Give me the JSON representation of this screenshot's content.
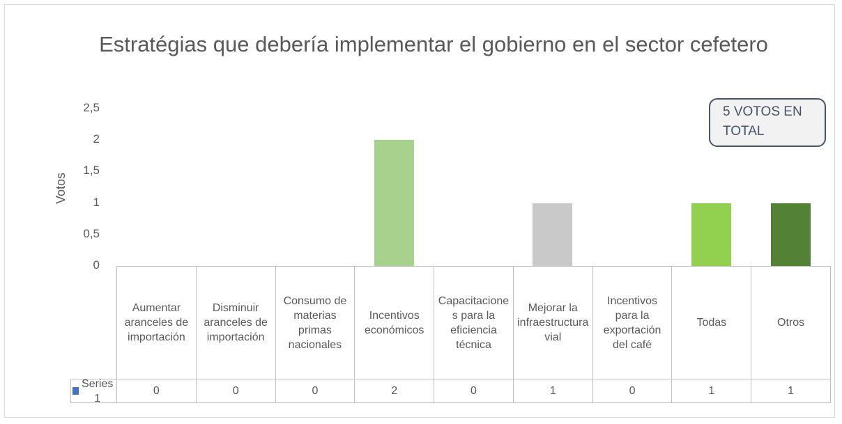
{
  "chart_data": {
    "type": "bar",
    "title": "Estratégias que debería implementar el gobierno en el sector cefetero",
    "y_label": "Votos",
    "categories": [
      "Aumentar aranceles de importación",
      "Disminuir aranceles de importación",
      "Consumo de materias primas nacionales",
      "Incentivos económicos",
      "Capacitaciones para la eficiencia técnica",
      "Mejorar la infraestructura vial",
      "Incentivos para la exportación del café",
      "Todas",
      "Otros"
    ],
    "series": [
      {
        "name": "Series1",
        "color": "#4472c4",
        "values": [
          0,
          0,
          0,
          2,
          0,
          1,
          0,
          1,
          1
        ],
        "point_colors": [
          null,
          null,
          null,
          "#a9d18e",
          null,
          "#c9c9c9",
          null,
          "#92d050",
          "#548235"
        ]
      }
    ],
    "ylim": [
      0,
      2.5
    ],
    "yticks": [
      0,
      {
        "value": 0.5,
        "label": "0,5"
      },
      1,
      {
        "value": 1.5,
        "label": "1,5"
      },
      2,
      {
        "value": 2.5,
        "label": "2,5"
      }
    ],
    "data_table": true,
    "annotation": "5 VOTOS EN TOTAL"
  }
}
